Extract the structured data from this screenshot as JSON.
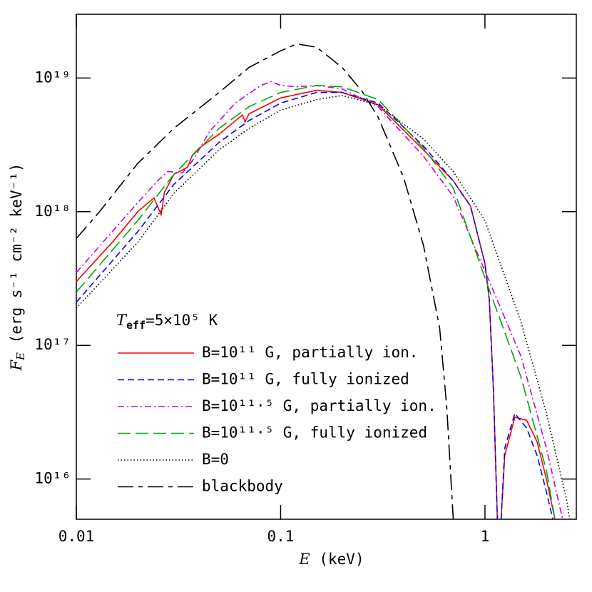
{
  "chart_data": {
    "type": "line",
    "x_label": {
      "symbol": "E",
      "unit": " (keV)"
    },
    "y_label": {
      "symbol": "F",
      "subscript": "E",
      "unit": " (erg s⁻¹ cm⁻² keV⁻¹)"
    },
    "annotation": {
      "symbol": "T",
      "subscript": "eff",
      "text": "=5×10⁵ K"
    },
    "xscale": "log",
    "yscale": "log",
    "xlim": [
      0.01,
      2.8
    ],
    "ylim": [
      5000000000000000.0,
      3e+19
    ],
    "xticks": [
      0.01,
      0.1,
      1
    ],
    "yticks": [
      {
        "value": 1e+16,
        "label": "10¹⁶"
      },
      {
        "value": 1e+17,
        "label": "10¹⁷"
      },
      {
        "value": 1e+18,
        "label": "10¹⁸"
      },
      {
        "value": 1e+19,
        "label": "10¹⁹"
      }
    ],
    "legend": "lower left",
    "series": [
      {
        "name": "B=10¹¹ G, partially ion.",
        "color": "#ff0000",
        "dash": "solid",
        "x": [
          0.01,
          0.015,
          0.02,
          0.024,
          0.026,
          0.027,
          0.03,
          0.035,
          0.037,
          0.04,
          0.05,
          0.065,
          0.067,
          0.07,
          0.1,
          0.15,
          0.2,
          0.3,
          0.5,
          0.7,
          0.85,
          1.0,
          1.05,
          1.1,
          1.15,
          1.17,
          1.2,
          1.25,
          1.4,
          1.6,
          1.8,
          2.0,
          2.2
        ],
        "values": [
          3e+17,
          5.9e+17,
          1e+18,
          1.27e+18,
          9.5e+17,
          1.4e+18,
          1.9e+18,
          2.15e+18,
          2.65e+18,
          3e+18,
          3.8e+18,
          5.3e+18,
          4.7e+18,
          5.4e+18,
          7.1e+18,
          8.1e+18,
          7.8e+18,
          6.3e+18,
          2.9e+18,
          1.7e+18,
          1.1e+18,
          4.1e+17,
          2.2e+17,
          4.7e+16,
          5000000000000000.0,
          null,
          5000000000000000.0,
          1.5e+16,
          2.9e+16,
          2.75e+16,
          1.9e+16,
          1e+16,
          5000000000000000.0
        ]
      },
      {
        "name": "B=10¹¹ G, fully ionized",
        "color": "#0000ff",
        "dash": "dashed",
        "x": [
          0.01,
          0.02,
          0.03,
          0.05,
          0.07,
          0.1,
          0.15,
          0.2,
          0.3,
          0.5,
          0.7,
          0.85,
          1.0,
          1.05,
          1.1,
          1.15,
          1.17,
          1.2,
          1.25,
          1.4,
          1.6,
          1.8,
          2.0,
          2.15
        ],
        "values": [
          2.1e+17,
          7.1e+17,
          1.6e+18,
          3.3e+18,
          4.8e+18,
          6.5e+18,
          7.8e+18,
          7.8e+18,
          6.5e+18,
          3.1e+18,
          1.7e+18,
          1.1e+18,
          4.1e+17,
          2.2e+17,
          4.7e+16,
          5000000000000000.0,
          null,
          5000000000000000.0,
          1.7e+16,
          3.1e+16,
          2.4e+16,
          1.5e+16,
          8000000000000000.0,
          5000000000000000.0
        ]
      },
      {
        "name": "B=10¹¹·⁵ G, partially ion.",
        "color": "#cc00cc",
        "dash": "dashdot",
        "x": [
          0.01,
          0.015,
          0.02,
          0.025,
          0.028,
          0.033,
          0.037,
          0.045,
          0.06,
          0.08,
          0.09,
          0.1,
          0.12,
          0.15,
          0.2,
          0.3,
          0.5,
          0.7,
          1.0,
          1.5,
          2.0,
          2.4
        ],
        "values": [
          3.5e+17,
          7.1e+17,
          1.17e+18,
          1.7e+18,
          2e+18,
          1.95e+18,
          2.4e+18,
          4e+18,
          6.5e+18,
          8.8e+18,
          9.4e+18,
          8.8e+18,
          8.6e+18,
          8.8e+18,
          8.3e+18,
          6.1e+18,
          2.6e+18,
          1.3e+18,
          3.6e+17,
          8.3e+16,
          1.7e+16,
          5000000000000000.0
        ]
      },
      {
        "name": "B=10¹¹·⁵ G, fully ionized",
        "color": "#00aa00",
        "dash": "longdash",
        "x": [
          0.01,
          0.02,
          0.03,
          0.05,
          0.07,
          0.1,
          0.15,
          0.2,
          0.3,
          0.5,
          0.7,
          1.0,
          1.5,
          2.0,
          2.2
        ],
        "values": [
          2.5e+17,
          8.6e+17,
          1.9e+18,
          4.2e+18,
          6.1e+18,
          7.8e+18,
          8.8e+18,
          8.6e+18,
          6.9e+18,
          3e+18,
          1.5e+18,
          3.2e+17,
          5.8e+16,
          1.16e+16,
          5000000000000000.0
        ]
      },
      {
        "name": "B=0",
        "color": "#000000",
        "dash": "dotted",
        "x": [
          0.01,
          0.02,
          0.03,
          0.05,
          0.07,
          0.1,
          0.15,
          0.2,
          0.3,
          0.5,
          0.7,
          1.0,
          1.5,
          2.0,
          2.5,
          2.6
        ],
        "values": [
          1.9e+17,
          5.9e+17,
          1.37e+18,
          2.9e+18,
          4.2e+18,
          5.75e+18,
          6.9e+18,
          7.4e+18,
          6.3e+18,
          3.5e+18,
          2e+18,
          8.6e+17,
          1.5e+17,
          3.1e+16,
          7200000000000000.0,
          5000000000000000.0
        ]
      },
      {
        "name": "blackbody",
        "color": "#000000",
        "dash": "dashlongdash",
        "x": [
          0.01,
          0.013,
          0.02,
          0.03,
          0.05,
          0.07,
          0.1,
          0.12,
          0.15,
          0.2,
          0.25,
          0.3,
          0.4,
          0.5,
          0.6,
          0.65,
          0.7
        ],
        "values": [
          6.3e+17,
          1e+18,
          2.3e+18,
          4.2e+18,
          7.8e+18,
          1.2e+19,
          1.6e+19,
          1.8e+19,
          1.7e+19,
          1.2e+19,
          8e+18,
          5.1e+18,
          1.8e+18,
          5.6e+17,
          1.35e+17,
          3.5e+16,
          5000000000000000.0
        ]
      }
    ]
  }
}
